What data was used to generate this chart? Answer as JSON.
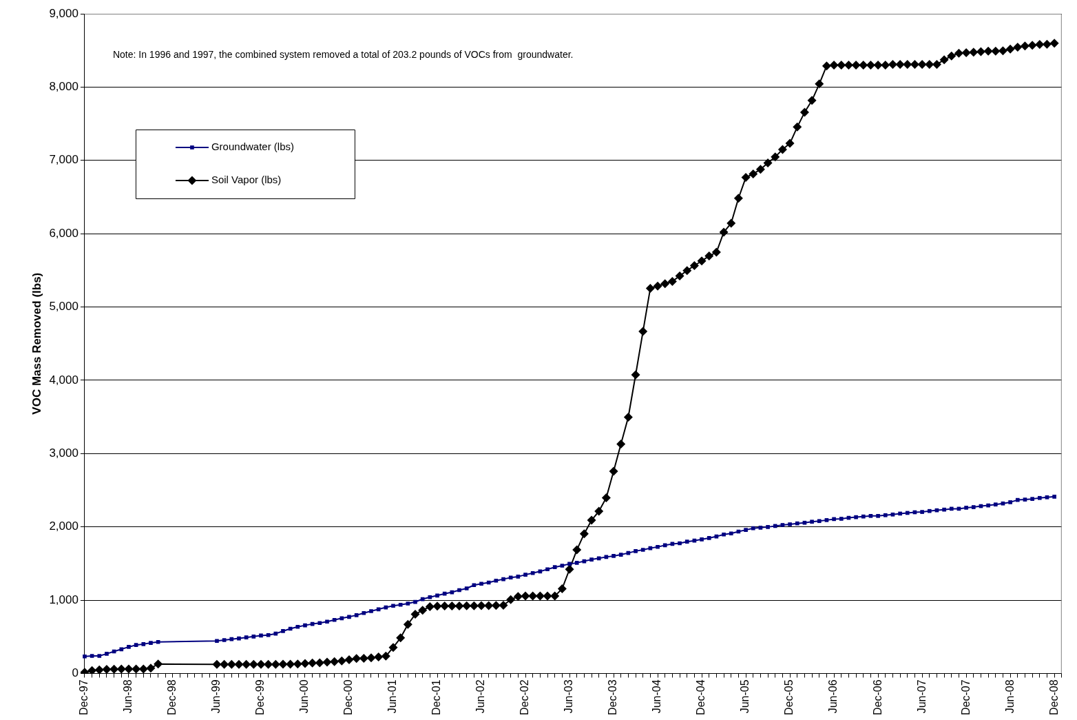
{
  "chart_data": {
    "type": "line",
    "ylabel": "VOC Mass Removed (lbs)",
    "annotations": [
      "Note: In 1996 and 1997, the combined system removed a total of 203.2 pounds of VOCs from  groundwater."
    ],
    "categories": [
      "Dec-97",
      null,
      null,
      null,
      null,
      null,
      "Jun-98",
      null,
      null,
      null,
      null,
      null,
      "Dec-98",
      null,
      null,
      null,
      null,
      null,
      "Jun-99",
      null,
      null,
      null,
      null,
      null,
      "Dec-99",
      null,
      null,
      null,
      null,
      null,
      "Jun-00",
      null,
      null,
      null,
      null,
      null,
      "Dec-00",
      null,
      null,
      null,
      null,
      null,
      "Jun-01",
      null,
      null,
      null,
      null,
      null,
      "Dec-01",
      null,
      null,
      null,
      null,
      null,
      "Jun-02",
      null,
      null,
      null,
      null,
      null,
      "Dec-02",
      null,
      null,
      null,
      null,
      null,
      "Jun-03",
      null,
      null,
      null,
      null,
      null,
      "Dec-03",
      null,
      null,
      null,
      null,
      null,
      "Jun-04",
      null,
      null,
      null,
      null,
      null,
      "Dec-04",
      null,
      null,
      null,
      null,
      null,
      "Jun-05",
      null,
      null,
      null,
      null,
      null,
      "Dec-05",
      null,
      null,
      null,
      null,
      null,
      "Jun-06",
      null,
      null,
      null,
      null,
      null,
      "Dec-06",
      null,
      null,
      null,
      null,
      null,
      "Jun-07",
      null,
      null,
      null,
      null,
      null,
      "Dec-07",
      null,
      null,
      null,
      null,
      null,
      "Jun-08",
      null,
      null,
      null,
      null,
      null,
      "Dec-08",
      null
    ],
    "series": [
      {
        "name": "Groundwater (lbs)",
        "color": "#000080",
        "marker": "square",
        "values": [
          232,
          239,
          239,
          268,
          300,
          330,
          362,
          388,
          400,
          417,
          429,
          null,
          null,
          null,
          null,
          null,
          null,
          null,
          443,
          455,
          468,
          478,
          491,
          504,
          517,
          523,
          543,
          578,
          610,
          636,
          656,
          675,
          688,
          707,
          730,
          753,
          772,
          795,
          824,
          850,
          875,
          901,
          923,
          937,
          953,
          976,
          1014,
          1040,
          1063,
          1088,
          1108,
          1137,
          1160,
          1205,
          1224,
          1240,
          1266,
          1286,
          1308,
          1321,
          1347,
          1369,
          1392,
          1421,
          1450,
          1470,
          1495,
          1509,
          1531,
          1554,
          1571,
          1589,
          1603,
          1620,
          1643,
          1669,
          1687,
          1709,
          1727,
          1749,
          1767,
          1776,
          1798,
          1812,
          1829,
          1847,
          1869,
          1896,
          1910,
          1936,
          1958,
          1981,
          1989,
          1998,
          2012,
          2025,
          2034,
          2047,
          2056,
          2070,
          2079,
          2092,
          2106,
          2110,
          2123,
          2132,
          2141,
          2149,
          2149,
          2159,
          2168,
          2181,
          2190,
          2199,
          2203,
          2216,
          2226,
          2235,
          2247,
          2247,
          2261,
          2269,
          2283,
          2292,
          2305,
          2319,
          2336,
          2367,
          2372,
          2381,
          2394,
          2403,
          2412,
          null
        ]
      },
      {
        "name": "Soil Vapor (lbs)",
        "color": "#000000",
        "marker": "diamond",
        "values": [
          16,
          39,
          48,
          55,
          58,
          61,
          61,
          61,
          61,
          71,
          129,
          null,
          null,
          null,
          null,
          null,
          null,
          null,
          123,
          123,
          123,
          123,
          123,
          123,
          123,
          123,
          123,
          125,
          125,
          128,
          136,
          142,
          145,
          155,
          162,
          171,
          187,
          203,
          207,
          213,
          226,
          236,
          355,
          485,
          669,
          807,
          862,
          911,
          917,
          920,
          920,
          920,
          922,
          922,
          925,
          925,
          927,
          930,
          1008,
          1050,
          1056,
          1056,
          1056,
          1056,
          1056,
          1156,
          1421,
          1686,
          1906,
          2090,
          2213,
          2396,
          2758,
          3130,
          3496,
          4074,
          4666,
          5255,
          5285,
          5318,
          5349,
          5423,
          5497,
          5564,
          5628,
          5695,
          5747,
          6020,
          6143,
          6483,
          6767,
          6815,
          6877,
          6964,
          7048,
          7148,
          7232,
          7455,
          7655,
          7817,
          8043,
          8288,
          8300,
          8300,
          8300,
          8300,
          8300,
          8300,
          8300,
          8300,
          8310,
          8310,
          8310,
          8310,
          8310,
          8310,
          8310,
          8372,
          8424,
          8463,
          8469,
          8476,
          8482,
          8489,
          8489,
          8495,
          8518,
          8543,
          8560,
          8569,
          8582,
          8585,
          8598,
          null
        ]
      }
    ],
    "ylim": [
      0,
      9000
    ],
    "yticks": [
      0,
      {
        "value": 1000,
        "label": "1,000"
      },
      {
        "value": 2000,
        "label": "2,000"
      },
      {
        "value": 3000,
        "label": "3,000"
      },
      {
        "value": 4000,
        "label": "4,000"
      },
      {
        "value": 5000,
        "label": "5,000"
      },
      {
        "value": 6000,
        "label": "6,000"
      },
      {
        "value": 7000,
        "label": "7,000"
      },
      {
        "value": 8000,
        "label": "8,000"
      },
      {
        "value": 9000,
        "label": "9,000"
      }
    ],
    "grid": "y",
    "legend": "top left",
    "line_style": "solid"
  }
}
